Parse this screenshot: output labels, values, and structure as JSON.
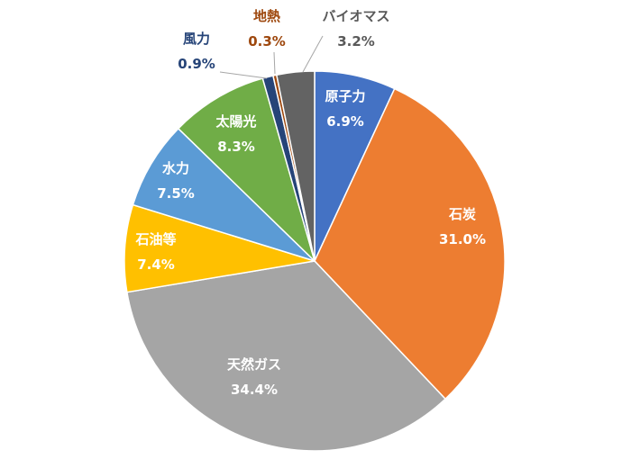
{
  "chart_data": {
    "type": "pie",
    "title": "",
    "start_angle_deg": 0,
    "direction": "clockwise",
    "slices": [
      {
        "name": "原子力",
        "value": 6.9,
        "label": "6.9%",
        "color": "#4472C4",
        "label_color": "#FFFFFF"
      },
      {
        "name": "石炭",
        "value": 31.0,
        "label": "31.0%",
        "color": "#ED7D31",
        "label_color": "#FFFFFF"
      },
      {
        "name": "天然ガス",
        "value": 34.4,
        "label": "34.4%",
        "color": "#A5A5A5",
        "label_color": "#FFFFFF"
      },
      {
        "name": "石油等",
        "value": 7.4,
        "label": "7.4%",
        "color": "#FFC000",
        "label_color": "#FFFFFF"
      },
      {
        "name": "水力",
        "value": 7.5,
        "label": "7.5%",
        "color": "#5B9BD5",
        "label_color": "#FFFFFF"
      },
      {
        "name": "太陽光",
        "value": 8.3,
        "label": "8.3%",
        "color": "#70AD47",
        "label_color": "#FFFFFF"
      },
      {
        "name": "風力",
        "value": 0.9,
        "label": "0.9%",
        "color": "#264478",
        "label_color": "#264478"
      },
      {
        "name": "地熱",
        "value": 0.3,
        "label": "0.3%",
        "color": "#9E480E",
        "label_color": "#9E480E"
      },
      {
        "name": "バイオマス",
        "value": 3.2,
        "label": "3.2%",
        "color": "#636363",
        "label_color": "#595959"
      }
    ],
    "legend": "none"
  }
}
